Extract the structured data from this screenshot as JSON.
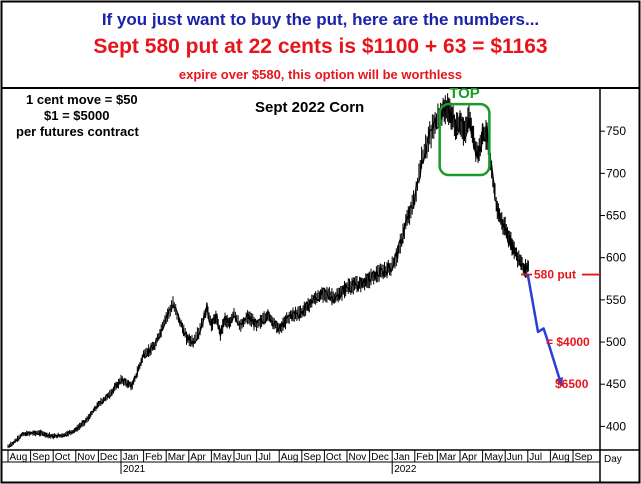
{
  "header": {
    "line1": "If you just want to buy the put, here are the numbers...",
    "line2": "Sept 580 put at 22 cents is $1100 + 63 = $1163",
    "line3": "expire over $580, this option will be worthless",
    "colors": {
      "line1": "#1a22a8",
      "line2": "#e8141b",
      "line3": "#e8141b"
    }
  },
  "chart_data": {
    "type": "line",
    "title": "Sept 2022 Corn",
    "y_ticks": [
      400,
      450,
      500,
      550,
      600,
      650,
      700,
      750
    ],
    "ylim": [
      372,
      800
    ],
    "x_months": [
      "Aug",
      "Sep",
      "Oct",
      "Nov",
      "Dec",
      "Jan",
      "Feb",
      "Mar",
      "Apr",
      "May",
      "Jun",
      "Jul",
      "Aug",
      "Sep",
      "Oct",
      "Nov",
      "Dec",
      "Jan",
      "Feb",
      "Mar",
      "Apr",
      "May",
      "Jun",
      "Jul",
      "Aug",
      "Sep"
    ],
    "x_years": [
      {
        "label": "2021",
        "month_index": 5
      },
      {
        "label": "2022",
        "month_index": 17
      }
    ],
    "x_unit": "Day",
    "series": [
      {
        "x": [
          0,
          0.3,
          0.6,
          1.0,
          1.5,
          2.0,
          2.5,
          3.0,
          3.5,
          4.0,
          4.5,
          5.0,
          5.5,
          6.0,
          6.5,
          7.0,
          7.3,
          7.6,
          7.9,
          8.2,
          8.5,
          8.8,
          9.0,
          9.2,
          9.4,
          9.6,
          9.8,
          10.0,
          10.3,
          10.6,
          11.0,
          11.5,
          12.0,
          12.5,
          13.0,
          13.5,
          14.0,
          14.5,
          15.0,
          15.5,
          16.0,
          16.3,
          16.6,
          17.0,
          17.3,
          17.6,
          18.0,
          18.3,
          18.6,
          18.9,
          19.2,
          19.4,
          19.6,
          19.8,
          20.0,
          20.2,
          20.4,
          20.6,
          20.8,
          21.0,
          21.2,
          21.4,
          21.6,
          21.8,
          22.0,
          22.2,
          22.4,
          22.55,
          22.7,
          22.85,
          23.0,
          23.05
        ],
        "values": [
          376,
          382,
          390,
          392,
          392,
          388,
          390,
          396,
          408,
          426,
          438,
          455,
          448,
          485,
          495,
          530,
          545,
          525,
          505,
          500,
          515,
          540,
          520,
          530,
          510,
          528,
          520,
          535,
          518,
          530,
          520,
          532,
          515,
          532,
          535,
          550,
          558,
          552,
          565,
          568,
          575,
          580,
          583,
          590,
          610,
          640,
          670,
          715,
          740,
          760,
          773,
          778,
          770,
          755,
          760,
          748,
          765,
          740,
          722,
          748,
          745,
          700,
          665,
          645,
          635,
          620,
          610,
          600,
          595,
          585,
          590,
          592
        ]
      }
    ],
    "annotations": [
      {
        "text": "TOP",
        "color": "#1a9a2a",
        "box_x": [
          19.1,
          21.3
        ],
        "box_y": [
          698,
          782
        ]
      },
      {
        "text": "580 put",
        "color": "#e8141b",
        "y": 580,
        "x_start": 22.7
      },
      {
        "text": "= $4000",
        "color": "#e8141b",
        "y": 500
      },
      {
        "text": "$6500",
        "color": "#e8141b",
        "y": 450
      }
    ],
    "projection": {
      "color": "#2a3fd6",
      "x": [
        23.0,
        23.45,
        23.7,
        23.85,
        24.5
      ],
      "values": [
        580,
        512,
        516,
        504,
        448
      ]
    },
    "grid": false
  },
  "notes": {
    "line1": "1 cent move = $50",
    "line2": "$1 = $5000",
    "line3": "per futures contract"
  }
}
